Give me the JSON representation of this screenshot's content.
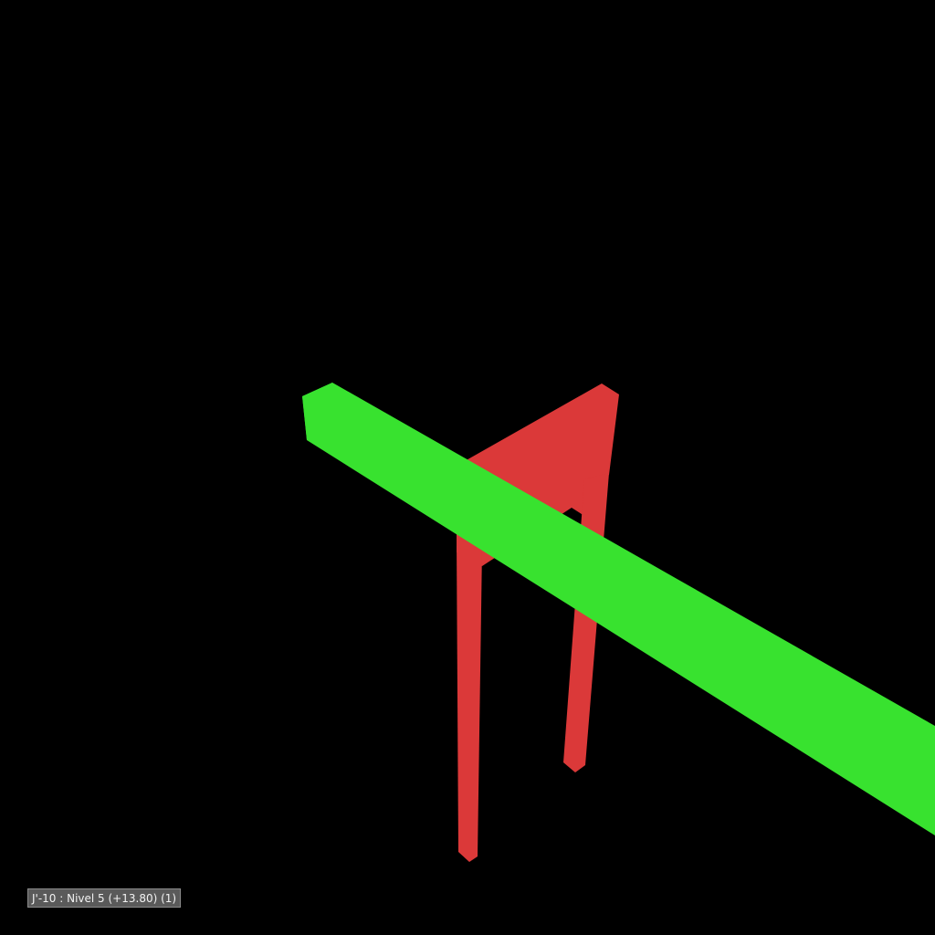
{
  "viewport": {
    "background_color": "#000000",
    "status_label": "J'-10 : Nivel 5 (+13.80) (1)"
  },
  "scene": {
    "objects": [
      {
        "name": "red-frame",
        "color": "#db3939"
      },
      {
        "name": "green-beam",
        "color": "#38e22f"
      }
    ]
  }
}
